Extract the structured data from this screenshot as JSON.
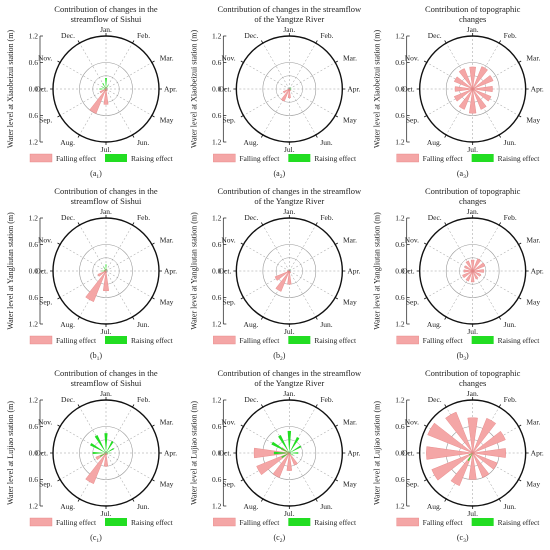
{
  "figure": {
    "legend": {
      "falling": "Falling effect",
      "raising": "Raising effect"
    },
    "colors": {
      "falling": "#f4a6a6",
      "falling_stroke": "#e58080",
      "raising": "#22dd22"
    },
    "months": [
      "Jan.",
      "Feb.",
      "Mar.",
      "Apr.",
      "May",
      "Jun.",
      "Jul.",
      "Aug.",
      "Sep.",
      "Oct.",
      "Nov.",
      "Dec."
    ],
    "radial_ticks": [
      "1.2",
      "0.6",
      "0.0",
      "0.6",
      "1.2"
    ],
    "station_ylabels": [
      "Water level at Xiaobeizui station (m)",
      "Water level at Yangliutan station (m)",
      "Water level at Lujiao station (m)"
    ],
    "column_titles": [
      [
        "Contribution of changes in the",
        "streamflow of Sishui"
      ],
      [
        "Contribution of changes in the streamflow",
        "of the Yangtze River"
      ],
      [
        "Contribution of topographic",
        "changes"
      ]
    ],
    "panel_letters": [
      "a",
      "b",
      "c"
    ]
  },
  "chart_data": [
    {
      "type": "polar-bar",
      "id": "a1",
      "rmax": 1.2,
      "falling": [
        0.05,
        0,
        0,
        0,
        0,
        0.05,
        0.35,
        0.6,
        0.15,
        0,
        0,
        0
      ],
      "raising": [
        0.25,
        0.1,
        0,
        0,
        0,
        0,
        0,
        0.05,
        0,
        0.15,
        0.1,
        0.15
      ]
    },
    {
      "type": "polar-bar",
      "id": "a2",
      "rmax": 1.2,
      "falling": [
        0,
        0,
        0,
        0,
        0,
        0.05,
        0.2,
        0.3,
        0.15,
        0,
        0,
        0
      ],
      "raising": [
        0,
        0.05,
        0.05,
        0.05,
        0.05,
        0,
        0,
        0,
        0,
        0,
        0,
        0
      ]
    },
    {
      "type": "polar-bar",
      "id": "a3",
      "rmax": 1.2,
      "falling": [
        0.5,
        0.55,
        0.5,
        0.45,
        0.45,
        0.5,
        0.55,
        0.5,
        0.45,
        0.4,
        0.45,
        0.5
      ],
      "raising": [
        0,
        0,
        0,
        0,
        0,
        0,
        0,
        0,
        0,
        0,
        0,
        0
      ]
    },
    {
      "type": "polar-bar",
      "id": "b1",
      "rmax": 1.2,
      "falling": [
        0.05,
        0,
        0,
        0,
        0,
        0,
        0.45,
        0.75,
        0.2,
        0.05,
        0,
        0
      ],
      "raising": [
        0.15,
        0.05,
        0,
        0,
        0,
        0,
        0,
        0,
        0,
        0.1,
        0.05,
        0.1
      ]
    },
    {
      "type": "polar-bar",
      "id": "b2",
      "rmax": 1.2,
      "falling": [
        0,
        0,
        0,
        0,
        0,
        0.05,
        0.3,
        0.5,
        0.35,
        0.05,
        0,
        0
      ],
      "raising": [
        0,
        0.05,
        0,
        0,
        0,
        0,
        0,
        0,
        0,
        0,
        0,
        0
      ]
    },
    {
      "type": "polar-bar",
      "id": "b3",
      "rmax": 1.2,
      "falling": [
        0.25,
        0.3,
        0.3,
        0.25,
        0.2,
        0.2,
        0.25,
        0.25,
        0.25,
        0.2,
        0.2,
        0.25
      ],
      "raising": [
        0,
        0,
        0,
        0,
        0,
        0,
        0,
        0,
        0,
        0,
        0,
        0
      ]
    },
    {
      "type": "polar-bar",
      "id": "c1",
      "rmax": 1.2,
      "falling": [
        0,
        0,
        0,
        0,
        0,
        0.05,
        0.3,
        0.75,
        0.25,
        0,
        0,
        0
      ],
      "raising": [
        0.45,
        0.3,
        0.2,
        0.1,
        0.05,
        0,
        0,
        0.05,
        0.15,
        0.3,
        0.4,
        0.45
      ]
    },
    {
      "type": "polar-bar",
      "id": "c2",
      "rmax": 1.2,
      "falling": [
        0,
        0,
        0,
        0,
        0,
        0.3,
        0.4,
        0.6,
        0.8,
        0.8,
        0.2,
        0
      ],
      "raising": [
        0.5,
        0.4,
        0.3,
        0.2,
        0.1,
        0,
        0,
        0,
        0.2,
        0.35,
        0.45,
        0.45
      ]
    },
    {
      "type": "polar-bar",
      "id": "c3",
      "rmax": 1.2,
      "falling": [
        0.8,
        0.85,
        0.8,
        0.75,
        0.6,
        0.6,
        0.6,
        0.8,
        1.0,
        1.05,
        1.1,
        1.0
      ],
      "raising": [
        0,
        0,
        0,
        0,
        0,
        0,
        0,
        0.2,
        0.1,
        0,
        0,
        0
      ]
    }
  ]
}
